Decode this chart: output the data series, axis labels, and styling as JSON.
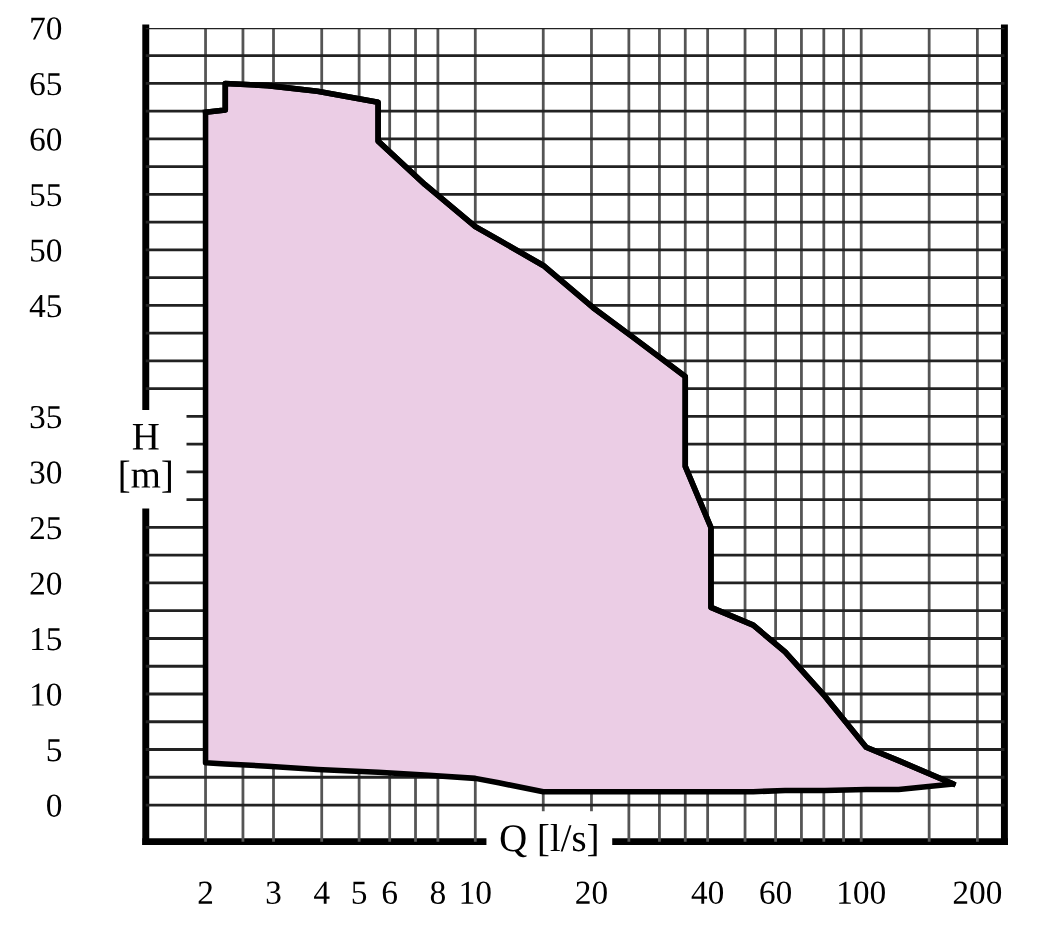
{
  "chart_data": {
    "type": "line",
    "xlabel": "Q [l/s]",
    "ylabel": "H\n[m]",
    "log": "x",
    "grid": true,
    "xlim": [
      1.4,
      235
    ],
    "ylim": [
      -3.3,
      70
    ],
    "xticks": [
      2,
      {
        "value": 2.5,
        "label": null
      },
      3,
      4,
      5,
      6,
      {
        "value": 7,
        "label": null
      },
      8,
      10,
      {
        "value": 15,
        "label": null
      },
      20,
      {
        "value": 25,
        "label": null
      },
      {
        "value": 30,
        "label": null
      },
      {
        "value": 35,
        "label": null
      },
      40,
      {
        "value": 50,
        "label": null
      },
      60,
      {
        "value": 70,
        "label": null
      },
      {
        "value": 80,
        "label": null
      },
      {
        "value": 90,
        "label": null
      },
      100,
      {
        "value": 150,
        "label": null
      },
      200
    ],
    "yticks": [
      0,
      {
        "value": 2.5,
        "label": null
      },
      5,
      {
        "value": 7.5,
        "label": null
      },
      10,
      {
        "value": 12.5,
        "label": null
      },
      15,
      {
        "value": 17.5,
        "label": null
      },
      20,
      {
        "value": 22.5,
        "label": null
      },
      25,
      {
        "value": 27.5,
        "label": null
      },
      30,
      {
        "value": 32.5,
        "label": null
      },
      35,
      {
        "value": 37.5,
        "label": null
      },
      {
        "value": 40,
        "label": null
      },
      {
        "value": 42.5,
        "label": null
      },
      45,
      {
        "value": 47.5,
        "label": null
      },
      50,
      {
        "value": 52.5,
        "label": null
      },
      55,
      {
        "value": 57.5,
        "label": null
      },
      60,
      {
        "value": 62.5,
        "label": null
      },
      65,
      {
        "value": 67.5,
        "label": null
      },
      70
    ],
    "series": [
      {
        "color": "#000000",
        "x": [
          2,
          2.25,
          2.25,
          2.9,
          3.9,
          5.6,
          5.6,
          7.4,
          10,
          11.5,
          15,
          20.2,
          25.7,
          35,
          35,
          40.8,
          40.8,
          52.5,
          63.5,
          80.5,
          103,
          125,
          173
        ],
        "values": [
          62.4,
          62.6,
          65,
          64.8,
          64.3,
          63.3,
          59.8,
          55.9,
          52.1,
          50.9,
          48.6,
          44.8,
          42.1,
          38.6,
          30.5,
          25,
          17.8,
          16.2,
          13.8,
          9.8,
          5.2,
          4.0,
          1.9
        ],
        "upper": [
          62.4,
          62.6,
          65,
          64.8,
          64.3,
          63.3,
          59.8,
          55.9,
          52.1,
          50.9,
          48.6,
          44.8,
          42.1,
          38.6,
          30.5,
          25,
          17.8,
          16.2,
          13.8,
          9.8,
          5.2,
          4.0,
          1.9
        ],
        "lower": [
          3.8,
          3.7,
          3.7,
          3.5,
          3.2,
          2.95,
          2.95,
          2.7,
          2.4,
          2.0,
          1.2,
          1.2,
          1.2,
          1.2,
          1.2,
          1.2,
          1.2,
          1.2,
          1.3,
          1.3,
          1.4,
          1.4,
          1.9
        ]
      }
    ]
  }
}
